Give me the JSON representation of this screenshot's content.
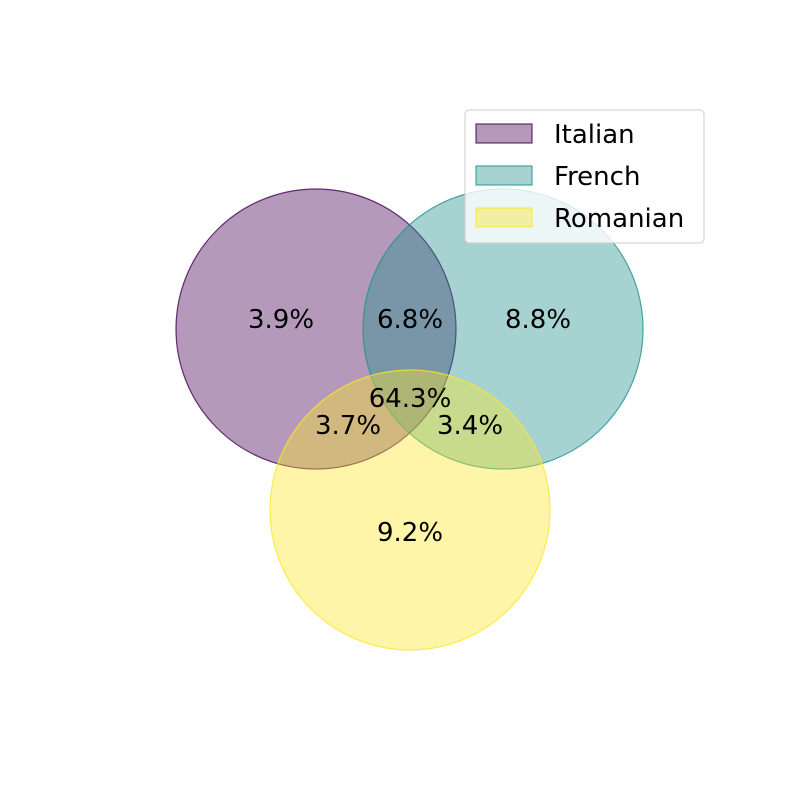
{
  "chart_data": {
    "type": "venn",
    "sets": [
      {
        "name": "Italian",
        "color": "#440154"
      },
      {
        "name": "French",
        "color": "#21918c"
      },
      {
        "name": "Romanian",
        "color": "#fde725"
      }
    ],
    "regions": [
      {
        "sets": [
          "Italian"
        ],
        "label": "3.9%"
      },
      {
        "sets": [
          "Italian",
          "French"
        ],
        "label": "6.8%"
      },
      {
        "sets": [
          "French"
        ],
        "label": "8.8%"
      },
      {
        "sets": [
          "Italian",
          "French",
          "Romanian"
        ],
        "label": "64.3%"
      },
      {
        "sets": [
          "Italian",
          "Romanian"
        ],
        "label": "3.7%"
      },
      {
        "sets": [
          "French",
          "Romanian"
        ],
        "label": "3.4%"
      },
      {
        "sets": [
          "Romanian"
        ],
        "label": "9.2%"
      }
    ],
    "legend_position": "top-right"
  }
}
